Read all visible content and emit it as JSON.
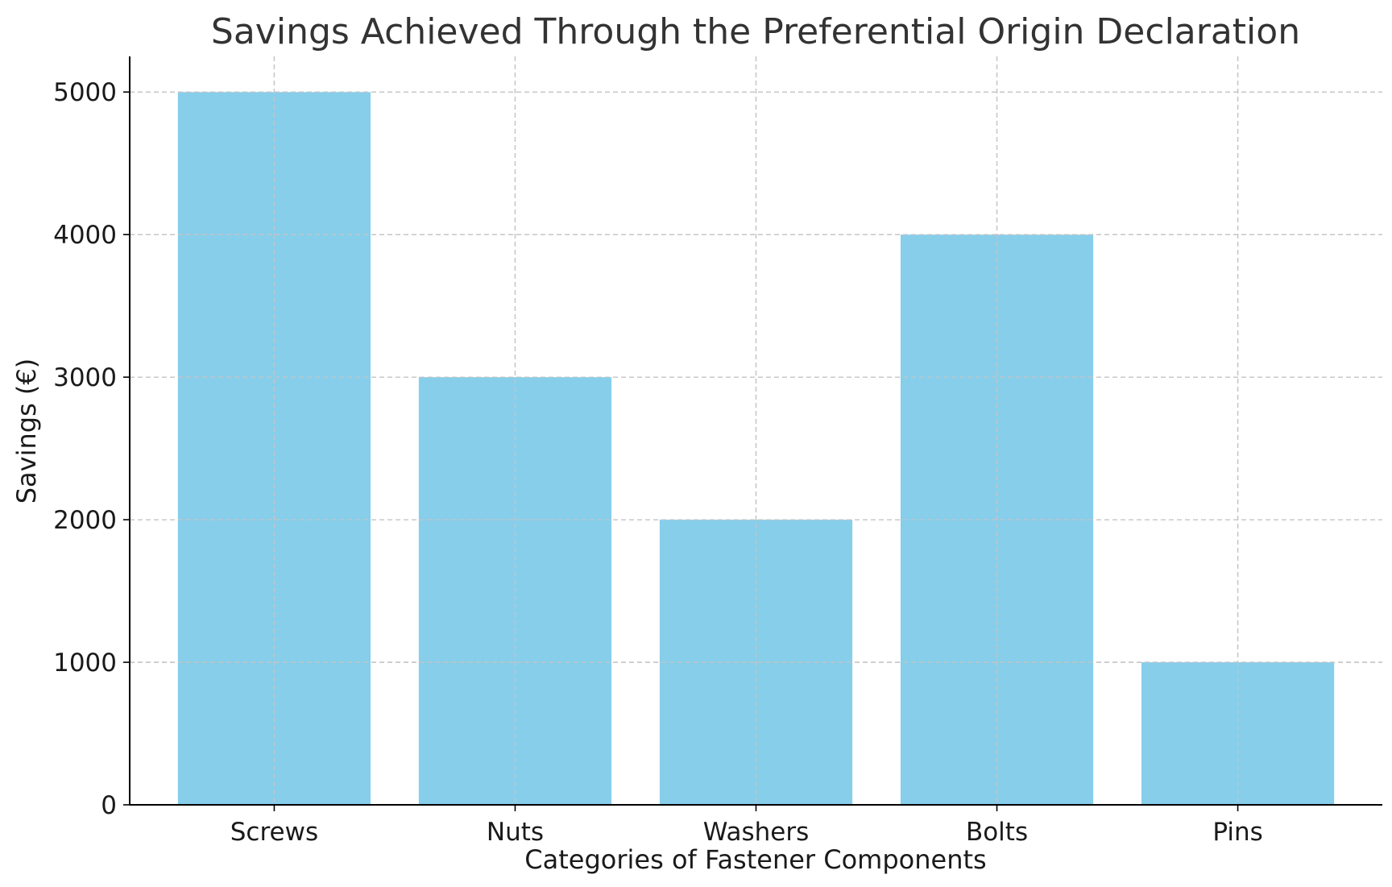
{
  "chart_data": {
    "type": "bar",
    "title": "Savings Achieved Through the Preferential Origin Declaration",
    "xlabel": "Categories of Fastener Components",
    "ylabel": "Savings (€)",
    "categories": [
      "Screws",
      "Nuts",
      "Washers",
      "Bolts",
      "Pins"
    ],
    "values": [
      5000,
      3000,
      2000,
      4000,
      1000
    ],
    "yticks": [
      0,
      1000,
      2000,
      3000,
      4000,
      5000
    ],
    "ylim": [
      0,
      5250
    ],
    "grid": true,
    "bar_color": "#87CEEB"
  }
}
